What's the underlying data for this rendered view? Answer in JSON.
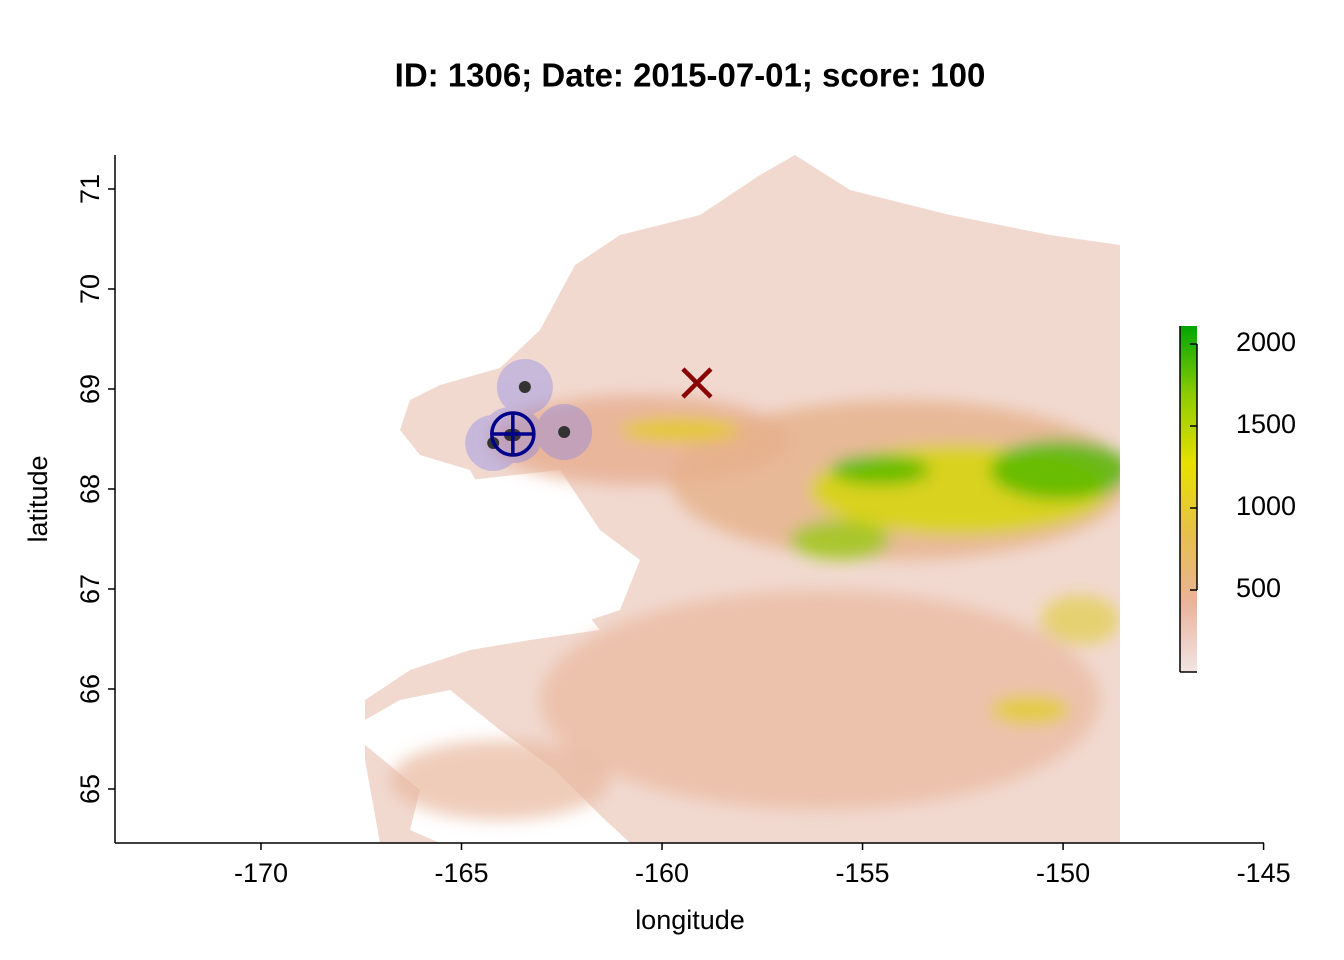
{
  "chart_data": {
    "type": "map",
    "title": "ID: 1306;  Date: 2015-07-01;  score: 100",
    "x_label": "longitude",
    "y_label": "latitude",
    "xlim": [
      -173.64,
      -144.99
    ],
    "ylim": [
      64.46,
      71.34
    ],
    "xticks": [
      -170,
      -165,
      -160,
      -155,
      -150,
      -145
    ],
    "yticks": [
      65,
      66,
      67,
      68,
      69,
      70,
      71
    ],
    "points": {
      "color": "#333333",
      "halo_color": "#7b7bef",
      "x": [
        -163.42,
        -162.44,
        -163.79,
        -163.67,
        -164.21
      ],
      "y": [
        69.02,
        68.57,
        68.54,
        68.54,
        68.46
      ]
    },
    "centroid": {
      "color": "#00008b",
      "x": -163.72,
      "y": 68.55
    },
    "cross": {
      "color": "#8b0000",
      "x": -159.13,
      "y": 69.06
    },
    "colorbar": {
      "lim": [
        0,
        2110
      ],
      "ticks": [
        500,
        1000,
        1500,
        2000
      ],
      "colors": [
        "#f2e4e4",
        "#eab39b",
        "#e6c04a",
        "#e8e000",
        "#8fcc00",
        "#00a600"
      ]
    }
  }
}
